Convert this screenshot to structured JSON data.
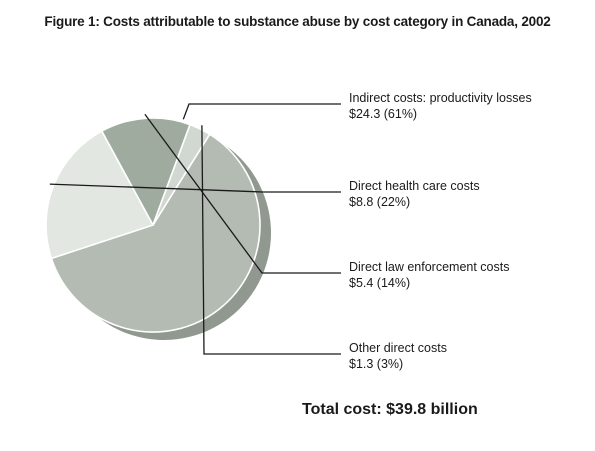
{
  "title": "Figure 1: Costs attributable to substance abuse by cost category in Canada, 2002",
  "total_text": "Total cost: $39.8 billion",
  "chart_data": {
    "type": "pie",
    "title": "Figure 1: Costs attributable to substance abuse by cost category in Canada, 2002",
    "slices": [
      {
        "label": "Indirect costs: productivity losses",
        "value": 24.3,
        "value_text": "$24.3 (61%)",
        "color": "#b3bbb3"
      },
      {
        "label": "Direct health care costs",
        "value": 8.8,
        "value_text": "$8.8 (22%)",
        "color": "#e2e7e2"
      },
      {
        "label": "Direct law enforcement costs",
        "value": 5.4,
        "value_text": "$5.4 (14%)",
        "color": "#9fab9f"
      },
      {
        "label": "Other direct costs",
        "value": 1.3,
        "value_text": "$1.3 (3%)",
        "color": "#d1d8d1"
      }
    ],
    "shadow_color": "#909890",
    "total": 39.8
  }
}
